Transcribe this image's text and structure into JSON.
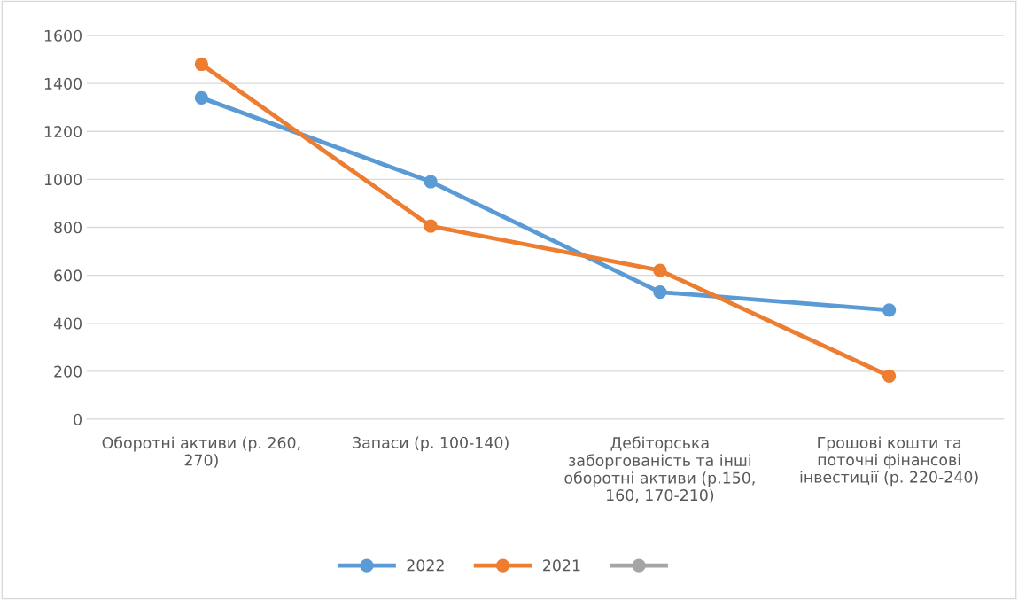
{
  "chart_data": {
    "type": "line",
    "categories": [
      "Оборотні активи (р. 260,\n270)",
      "Запаси (р. 100-140)",
      "Дебіторська\nзаборгованість та інші\nоборотні активи (р.150,\n160, 170-210)",
      "Грошові кошти та\nпоточні фінансові\nінвестиції (р. 220-240)"
    ],
    "series": [
      {
        "name": "2022",
        "color": "#5b9bd5",
        "values": [
          1340,
          990,
          530,
          455
        ]
      },
      {
        "name": "2021",
        "color": "#ed7d31",
        "values": [
          1480,
          805,
          620,
          180
        ]
      },
      {
        "color": "#a5a5a5",
        "values": [
          null,
          null,
          null,
          null
        ]
      }
    ],
    "ylim": [
      0,
      1600
    ],
    "yticks": [
      0,
      200,
      400,
      600,
      800,
      1000,
      1200,
      1400,
      1600
    ],
    "grid": "y",
    "legend": "bottom",
    "marker": "circle",
    "line_style": "solid"
  }
}
